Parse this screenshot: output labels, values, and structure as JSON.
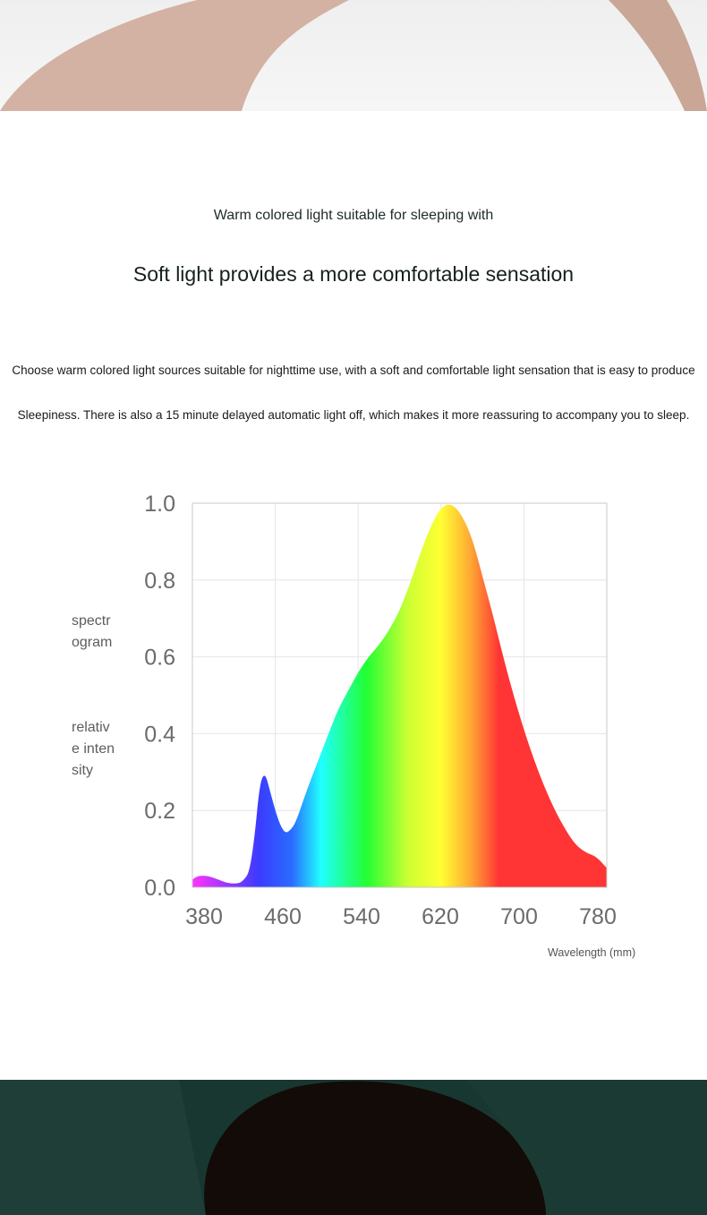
{
  "header": {
    "subtitle": "Warm colored light suitable for sleeping with",
    "headline": "Soft light provides a more comfortable sensation"
  },
  "body": {
    "line1": "Choose warm colored light sources suitable for nighttime use, with a soft and comfortable light sensation that is easy to produce",
    "line2": "Sleepiness. There is also a 15 minute delayed automatic light off, which makes it more reassuring to accompany you to sleep."
  },
  "chart_data": {
    "type": "area",
    "title": "",
    "ylabel_lines_1": [
      "spectr",
      "ogram"
    ],
    "ylabel_lines_2": [
      "relativ",
      "e inten",
      "sity"
    ],
    "xlabel": "Wavelength (mm)",
    "xlim": [
      380,
      780
    ],
    "ylim": [
      0,
      1.0
    ],
    "x_ticks": [
      "380",
      "460",
      "540",
      "620",
      "700",
      "780"
    ],
    "y_ticks": [
      "1.0",
      "0.8",
      "0.6",
      "0.4",
      "0.2",
      "0.0"
    ],
    "grid": true,
    "series": [
      {
        "x": [
          380,
          385,
          395,
          405,
          415,
          425,
          430,
          435,
          440,
          445,
          450,
          455,
          460,
          465,
          470,
          475,
          480,
          490,
          500,
          510,
          520,
          530,
          540,
          550,
          560,
          570,
          580,
          590,
          600,
          610,
          620,
          630,
          640,
          650,
          660,
          670,
          680,
          690,
          700,
          710,
          720,
          730,
          740,
          750,
          760,
          770,
          780
        ],
        "y": [
          0.02,
          0.03,
          0.03,
          0.02,
          0.01,
          0.01,
          0.02,
          0.04,
          0.13,
          0.27,
          0.3,
          0.25,
          0.2,
          0.16,
          0.14,
          0.15,
          0.17,
          0.25,
          0.32,
          0.39,
          0.46,
          0.51,
          0.56,
          0.6,
          0.63,
          0.67,
          0.72,
          0.79,
          0.87,
          0.94,
          0.99,
          1.0,
          0.97,
          0.91,
          0.81,
          0.71,
          0.6,
          0.5,
          0.41,
          0.33,
          0.26,
          0.2,
          0.15,
          0.11,
          0.09,
          0.08,
          0.05
        ]
      }
    ],
    "colors": [
      "#ff33ff",
      "#3b3bff",
      "#2a6cff",
      "#20ffff",
      "#22ff33",
      "#ccff33",
      "#ffff33",
      "#ffaa33",
      "#ff3434"
    ]
  }
}
